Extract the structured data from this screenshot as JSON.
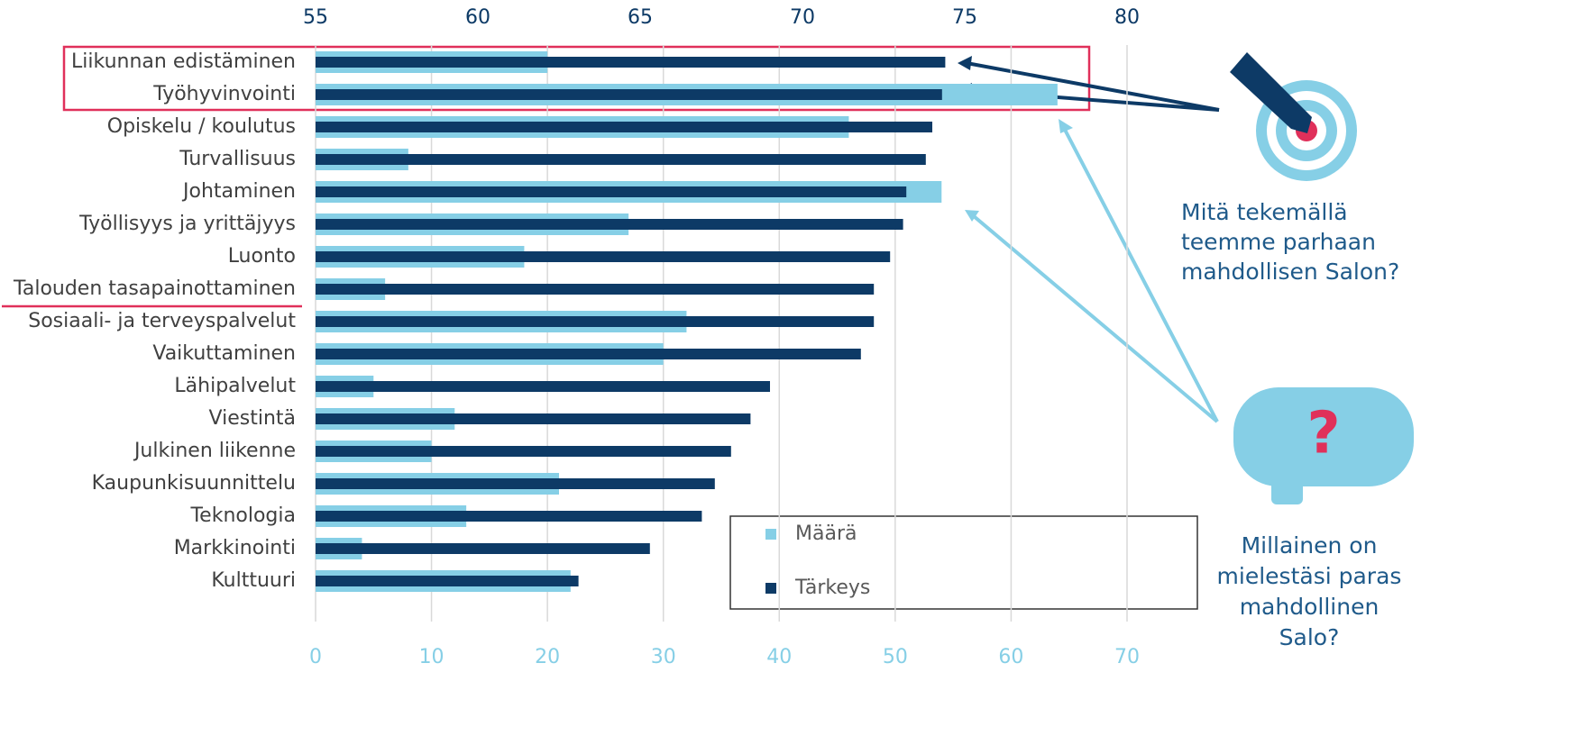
{
  "chart_data": {
    "type": "bar",
    "orientation": "horizontal",
    "categories": [
      "Liikunnan edistäminen",
      "Työhyvinvointi",
      "Opiskelu / koulutus",
      "Turvallisuus",
      "Johtaminen",
      "Työllisyys ja yrittäjyys",
      "Luonto",
      "Talouden tasapainottaminen",
      "Sosiaali- ja terveyspalvelut",
      "Vaikuttaminen",
      "Lähipalvelut",
      "Viestintä",
      "Julkinen liikenne",
      "Kaupunkisuunnittelu",
      "Teknologia",
      "Markkinointi",
      "Kulttuuri"
    ],
    "series": [
      {
        "name": "Määrä",
        "color": "#86cfe6",
        "axis": "x",
        "values": [
          20,
          64,
          46,
          8,
          54,
          27,
          18,
          6,
          32,
          30,
          5,
          12,
          10,
          21,
          13,
          4,
          22
        ]
      },
      {
        "name": "Tärkeys",
        "color": "#0d3a66",
        "axis": "x2",
        "values": [
          74.4,
          74.3,
          74.0,
          73.8,
          73.2,
          73.1,
          72.7,
          72.2,
          72.2,
          71.8,
          69.0,
          68.4,
          67.8,
          67.3,
          66.9,
          65.3,
          63.1
        ]
      }
    ],
    "xlim": [
      0,
      70
    ],
    "xticks": [
      0,
      10,
      20,
      30,
      40,
      50,
      60,
      70
    ],
    "x2lim": [
      55,
      80
    ],
    "x2ticks": [
      55,
      60,
      65,
      70,
      75,
      80
    ],
    "grid": true,
    "annotations": {
      "target_question": [
        "Mitä tekemällä",
        "teemme parhaan",
        "mahdollisen Salon?"
      ],
      "bubble_mark": "?",
      "bubble_question": [
        "Millainen on",
        "mielestäsi paras",
        "mahdollinen",
        "Salo?"
      ]
    }
  }
}
